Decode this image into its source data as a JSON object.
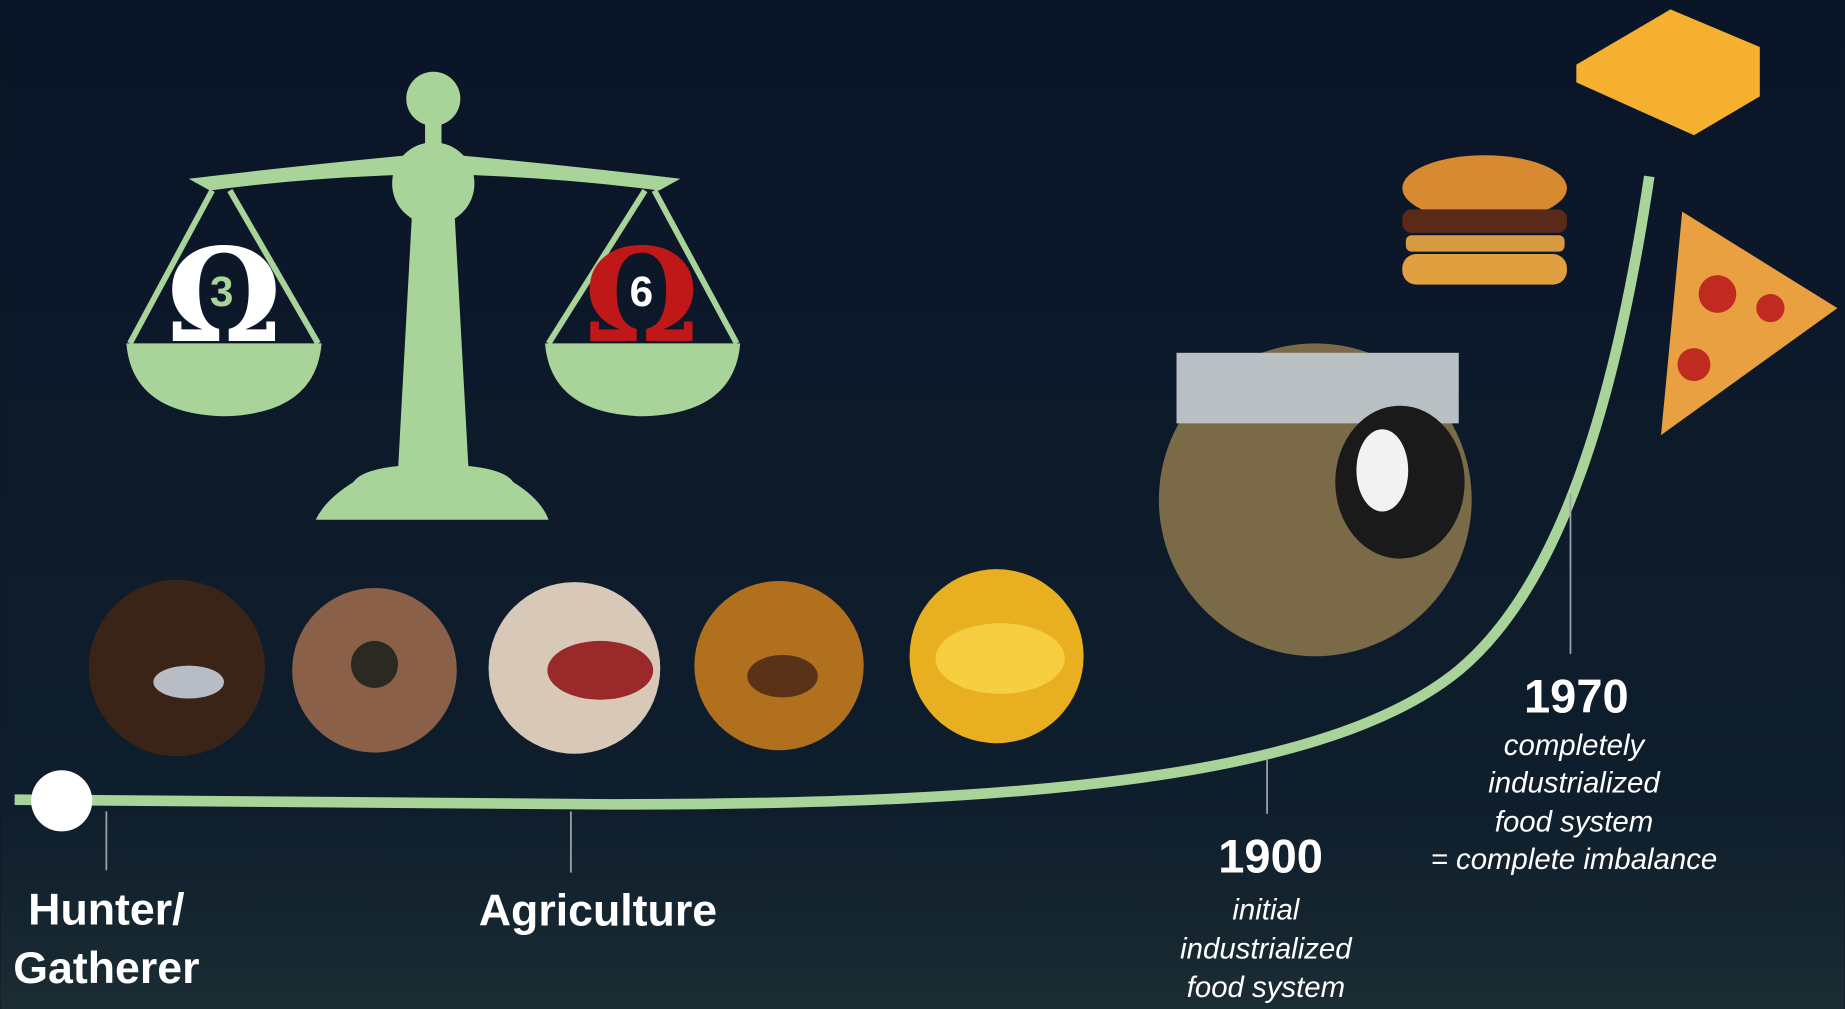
{
  "scale": {
    "omega_symbol": "Ω",
    "left_omega": "3",
    "right_omega": "6"
  },
  "timeline": [
    {
      "label": [
        "Hunter/",
        "Gatherer"
      ]
    },
    {
      "label": [
        "Agriculture"
      ]
    },
    {
      "year": "1900",
      "description": [
        "initial",
        "industrialized",
        "food system"
      ]
    },
    {
      "year": "1970",
      "description": [
        "completely",
        "industrialized",
        "food system",
        "= complete imbalance"
      ]
    }
  ]
}
